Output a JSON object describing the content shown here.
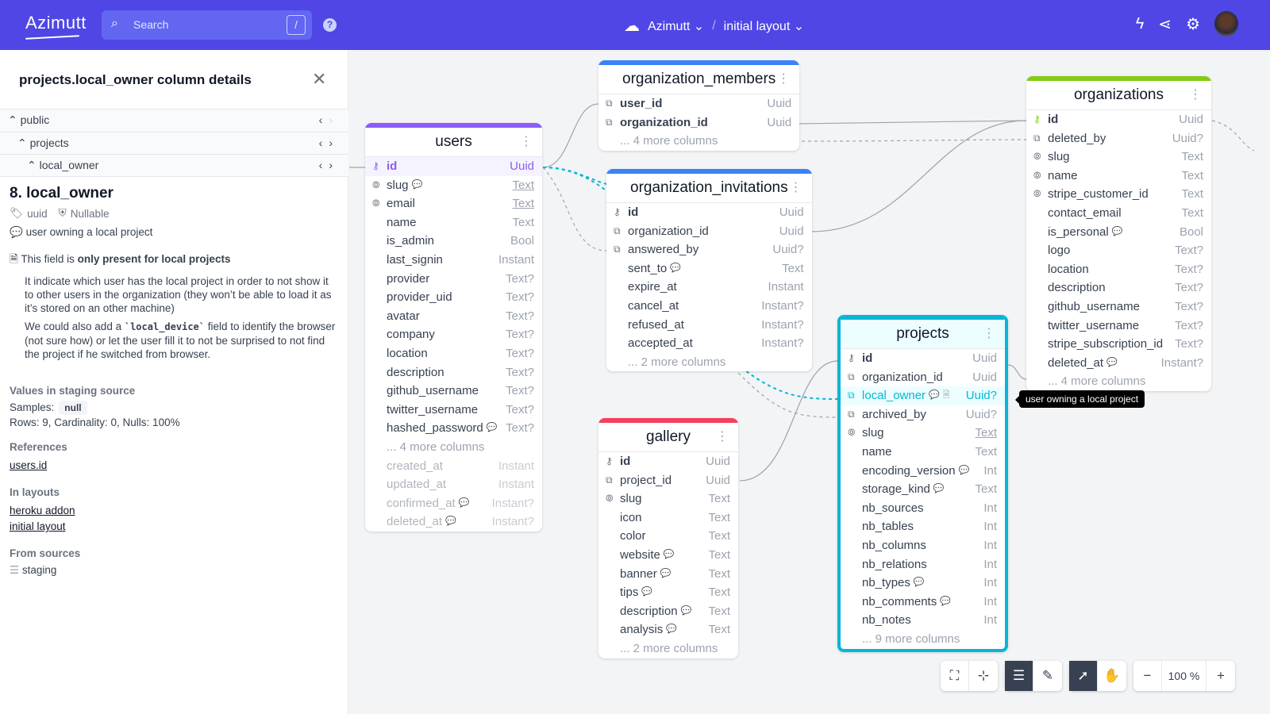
{
  "header": {
    "logo": "Azimutt",
    "search_placeholder": "Search",
    "search_shortcut": "/",
    "project": "Azimutt",
    "layout": "initial layout"
  },
  "panel": {
    "title": "projects.local_owner column details",
    "tree": [
      {
        "label": "public"
      },
      {
        "label": "projects"
      },
      {
        "label": "local_owner"
      }
    ],
    "column_title": "8. local_owner",
    "type": "uuid",
    "nullable": "Nullable",
    "comment": "user owning a local project",
    "note_intro": "This field is ",
    "note_bold": "only present for local projects",
    "note_p1": "It indicate which user has the local project in order to not show it to other users in the organization (they won’t be able to load it as it’s stored on an other machine)",
    "note_p2a": "We could also add a ",
    "note_p2_code": "`local_device`",
    "note_p2b": " field to identify the browser (not sure how) or let the user fill it to not be surprised to not find the project if he switched from browser.",
    "values_title": "Values in staging source",
    "samples_label": "Samples:",
    "sample": "null",
    "stats": "Rows: 9, Cardinality: 0, Nulls: 100%",
    "references_title": "References",
    "references": [
      "users.id"
    ],
    "layouts_title": "In layouts",
    "layouts": [
      "heroku addon",
      "initial layout"
    ],
    "sources_title": "From sources",
    "sources": [
      "staging"
    ]
  },
  "tooltip": "user owning a local project",
  "toolbar": {
    "zoom": "100 %"
  },
  "colors": {
    "primary": "#4f46e5",
    "users": "#8b5cf6",
    "organization_members": "#3b82f6",
    "organization_invitations": "#3b82f6",
    "organizations": "#84cc16",
    "projects": "#06b6d4",
    "gallery": "#f43f5e"
  },
  "tables": [
    {
      "id": "users",
      "name": "users",
      "color": "#8b5cf6",
      "rows": [
        {
          "n": "id",
          "t": "Uuid",
          "i": "key",
          "b": true,
          "hl": true
        },
        {
          "n": "slug",
          "t": "Text",
          "i": "unique",
          "c": true,
          "u": true
        },
        {
          "n": "email",
          "t": "Text",
          "i": "unique",
          "u": true
        },
        {
          "n": "name",
          "t": "Text"
        },
        {
          "n": "is_admin",
          "t": "Bool"
        },
        {
          "n": "last_signin",
          "t": "Instant"
        },
        {
          "n": "provider",
          "t": "Text?"
        },
        {
          "n": "provider_uid",
          "t": "Text?"
        },
        {
          "n": "avatar",
          "t": "Text?"
        },
        {
          "n": "company",
          "t": "Text?"
        },
        {
          "n": "location",
          "t": "Text?"
        },
        {
          "n": "description",
          "t": "Text?"
        },
        {
          "n": "github_username",
          "t": "Text?"
        },
        {
          "n": "twitter_username",
          "t": "Text?"
        },
        {
          "n": "hashed_password",
          "t": "Text?",
          "c": true
        },
        {
          "more": "... 4 more columns"
        },
        {
          "n": "created_at",
          "t": "Instant",
          "m": true
        },
        {
          "n": "updated_at",
          "t": "Instant",
          "m": true
        },
        {
          "n": "confirmed_at",
          "t": "Instant?",
          "c": true,
          "m": true
        },
        {
          "n": "deleted_at",
          "t": "Instant?",
          "c": true,
          "m": true
        }
      ]
    },
    {
      "id": "organization_members",
      "name": "organization_members",
      "color": "#3b82f6",
      "rows": [
        {
          "n": "user_id",
          "t": "Uuid",
          "i": "fk",
          "b": true
        },
        {
          "n": "organization_id",
          "t": "Uuid",
          "i": "fk",
          "b": true
        },
        {
          "more": "... 4 more columns"
        }
      ]
    },
    {
      "id": "organization_invitations",
      "name": "organization_invitations",
      "color": "#3b82f6",
      "rows": [
        {
          "n": "id",
          "t": "Uuid",
          "i": "key",
          "b": true
        },
        {
          "n": "organization_id",
          "t": "Uuid",
          "i": "fk"
        },
        {
          "n": "answered_by",
          "t": "Uuid?",
          "i": "fk"
        },
        {
          "n": "sent_to",
          "t": "Text",
          "c": true
        },
        {
          "n": "expire_at",
          "t": "Instant"
        },
        {
          "n": "cancel_at",
          "t": "Instant?"
        },
        {
          "n": "refused_at",
          "t": "Instant?"
        },
        {
          "n": "accepted_at",
          "t": "Instant?"
        },
        {
          "more": "... 2 more columns"
        }
      ]
    },
    {
      "id": "organizations",
      "name": "organizations",
      "color": "#84cc16",
      "rows": [
        {
          "n": "id",
          "t": "Uuid",
          "i": "key",
          "b": true
        },
        {
          "n": "deleted_by",
          "t": "Uuid?",
          "i": "fk"
        },
        {
          "n": "slug",
          "t": "Text",
          "i": "unique"
        },
        {
          "n": "name",
          "t": "Text",
          "i": "unique"
        },
        {
          "n": "stripe_customer_id",
          "t": "Text",
          "i": "unique"
        },
        {
          "n": "contact_email",
          "t": "Text"
        },
        {
          "n": "is_personal",
          "t": "Bool",
          "c": true
        },
        {
          "n": "logo",
          "t": "Text?"
        },
        {
          "n": "location",
          "t": "Text?"
        },
        {
          "n": "description",
          "t": "Text?"
        },
        {
          "n": "github_username",
          "t": "Text?"
        },
        {
          "n": "twitter_username",
          "t": "Text?"
        },
        {
          "n": "stripe_subscription_id",
          "t": "Text?"
        },
        {
          "n": "deleted_at",
          "t": "Instant?",
          "c": true
        },
        {
          "more": "... 4 more columns"
        }
      ]
    },
    {
      "id": "projects",
      "name": "projects",
      "color": "#06b6d4",
      "rows": [
        {
          "n": "id",
          "t": "Uuid",
          "i": "key",
          "b": true
        },
        {
          "n": "organization_id",
          "t": "Uuid",
          "i": "fk"
        },
        {
          "n": "local_owner",
          "t": "Uuid?",
          "i": "fk",
          "c": true,
          "d": true,
          "sel": true
        },
        {
          "n": "archived_by",
          "t": "Uuid?",
          "i": "fk"
        },
        {
          "n": "slug",
          "t": "Text",
          "i": "unique",
          "u": true
        },
        {
          "n": "name",
          "t": "Text"
        },
        {
          "n": "encoding_version",
          "t": "Int",
          "c": true
        },
        {
          "n": "storage_kind",
          "t": "Text",
          "c": true
        },
        {
          "n": "nb_sources",
          "t": "Int"
        },
        {
          "n": "nb_tables",
          "t": "Int"
        },
        {
          "n": "nb_columns",
          "t": "Int"
        },
        {
          "n": "nb_relations",
          "t": "Int"
        },
        {
          "n": "nb_types",
          "t": "Int",
          "c": true
        },
        {
          "n": "nb_comments",
          "t": "Int",
          "c": true
        },
        {
          "n": "nb_notes",
          "t": "Int"
        },
        {
          "more": "... 9 more columns"
        }
      ]
    },
    {
      "id": "gallery",
      "name": "gallery",
      "color": "#f43f5e",
      "rows": [
        {
          "n": "id",
          "t": "Uuid",
          "i": "key",
          "b": true
        },
        {
          "n": "project_id",
          "t": "Uuid",
          "i": "fk"
        },
        {
          "n": "slug",
          "t": "Text",
          "i": "unique"
        },
        {
          "n": "icon",
          "t": "Text"
        },
        {
          "n": "color",
          "t": "Text"
        },
        {
          "n": "website",
          "t": "Text",
          "c": true
        },
        {
          "n": "banner",
          "t": "Text",
          "c": true
        },
        {
          "n": "tips",
          "t": "Text",
          "c": true
        },
        {
          "n": "description",
          "t": "Text",
          "c": true
        },
        {
          "n": "analysis",
          "t": "Text",
          "c": true
        },
        {
          "more": "... 2 more columns"
        }
      ]
    }
  ]
}
